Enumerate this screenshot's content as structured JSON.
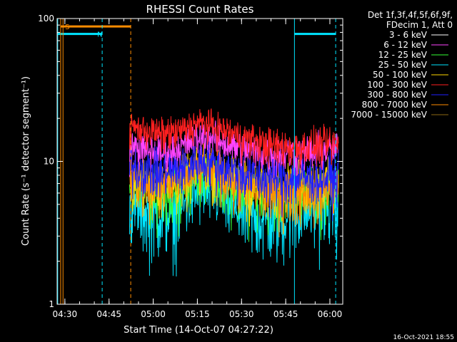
{
  "chart_data": {
    "type": "line",
    "title": "RHESSI Count Rates",
    "xlabel": "Start Time (14-Oct-07 04:27:22)",
    "ylabel": "Count Rate (s⁻¹ detector segment⁻¹)",
    "yscale": "log",
    "ylim": [
      1,
      100
    ],
    "xlim_minutes": [
      0,
      97
    ],
    "y_ticks": [
      "1",
      "10",
      "100"
    ],
    "x_ticks": [
      {
        "label": "04:30",
        "minute": 2.63
      },
      {
        "label": "04:45",
        "minute": 17.63
      },
      {
        "label": "05:00",
        "minute": 32.63
      },
      {
        "label": "05:15",
        "minute": 47.63
      },
      {
        "label": "05:30",
        "minute": 62.63
      },
      {
        "label": "05:45",
        "minute": 77.63
      },
      {
        "label": "06:00",
        "minute": 92.63
      }
    ],
    "legend_header": [
      "Det 1f,3f,4f,5f,6f,9f,",
      "FDecim 1, Att 0"
    ],
    "legend_placement": "right",
    "data_start_minute": 24.6,
    "data_end_minute": 95.6,
    "series": [
      {
        "name": "3 - 6 keV",
        "color": "#ffffff",
        "draw_color": "#000000",
        "x_minutes": [
          24.6,
          30,
          35,
          40,
          44,
          47,
          50,
          55,
          60,
          65,
          70,
          75,
          80,
          85,
          90,
          95.6
        ],
        "values": [
          5.2,
          4.6,
          4.4,
          4.6,
          5.4,
          6.4,
          6.9,
          6.2,
          5.0,
          4.4,
          4.1,
          4.1,
          4.6,
          4.9,
          5.1,
          5.3
        ]
      },
      {
        "name": "6 - 12 keV",
        "color": "#ff44ff",
        "x_minutes": [
          24.6,
          30,
          35,
          40,
          44,
          47,
          50,
          55,
          60,
          65,
          70,
          75,
          80,
          85,
          90,
          95.6
        ],
        "values": [
          12.8,
          12.0,
          11.4,
          11.9,
          13.3,
          14.6,
          15.1,
          14.0,
          12.7,
          11.9,
          11.3,
          11.1,
          11.4,
          11.6,
          11.9,
          12.1
        ]
      },
      {
        "name": "12 - 25 keV",
        "color": "#33ff33",
        "x_minutes": [
          24.6,
          30,
          35,
          40,
          44,
          47,
          50,
          55,
          60,
          65,
          70,
          75,
          80,
          85,
          90,
          95.6
        ],
        "values": [
          6.8,
          6.3,
          6.0,
          6.3,
          7.2,
          8.0,
          8.4,
          7.7,
          6.8,
          6.2,
          5.9,
          5.8,
          6.0,
          6.1,
          6.3,
          6.4
        ]
      },
      {
        "name": "25 - 50 keV",
        "color": "#00e5ff",
        "x_minutes": [
          24.6,
          30,
          35,
          40,
          44,
          47,
          50,
          55,
          60,
          65,
          70,
          75,
          80,
          85,
          90,
          95.6
        ],
        "values": [
          5.0,
          4.4,
          4.2,
          4.4,
          5.1,
          5.9,
          6.3,
          5.7,
          4.7,
          4.2,
          3.9,
          3.9,
          4.3,
          4.6,
          4.8,
          5.0
        ]
      },
      {
        "name": "50 - 100 keV",
        "color": "#ffd700",
        "x_minutes": [
          24.6,
          30,
          35,
          40,
          44,
          47,
          50,
          55,
          60,
          65,
          70,
          75,
          80,
          85,
          90,
          95.6
        ],
        "values": [
          7.5,
          7.0,
          6.7,
          7.0,
          7.8,
          8.6,
          9.0,
          8.3,
          7.4,
          6.8,
          6.5,
          6.4,
          6.6,
          6.8,
          7.0,
          7.1
        ]
      },
      {
        "name": "100 - 300 keV",
        "color": "#ff2020",
        "x_minutes": [
          24.6,
          30,
          35,
          40,
          44,
          47,
          50,
          55,
          60,
          65,
          70,
          75,
          80,
          85,
          90,
          95.6
        ],
        "values": [
          17.6,
          16.5,
          15.6,
          15.9,
          17.0,
          18.3,
          18.6,
          17.0,
          15.5,
          14.3,
          13.4,
          12.8,
          12.7,
          12.8,
          13.1,
          13.3
        ]
      },
      {
        "name": "300 - 800 keV",
        "color": "#2020ff",
        "x_minutes": [
          24.6,
          30,
          35,
          40,
          44,
          47,
          50,
          55,
          60,
          65,
          70,
          75,
          80,
          85,
          90,
          95.6
        ],
        "values": [
          9.4,
          8.8,
          8.4,
          8.6,
          9.3,
          10.0,
          10.2,
          9.4,
          8.6,
          8.0,
          7.7,
          7.5,
          7.6,
          7.7,
          7.8,
          7.9
        ]
      },
      {
        "name": "800 - 7000 keV",
        "color": "#ff8c00",
        "x_minutes": [
          24.6,
          30,
          35,
          40,
          44,
          47,
          50,
          55,
          60,
          65,
          70,
          75,
          80,
          85,
          90,
          95.6
        ],
        "values": [
          7.9,
          7.3,
          7.0,
          7.2,
          8.0,
          8.8,
          9.1,
          8.3,
          7.3,
          6.7,
          6.3,
          6.2,
          6.3,
          6.5,
          6.7,
          6.8
        ]
      },
      {
        "name": "7000 - 15000 keV",
        "color": "#8b6914",
        "x_minutes": [
          24.6,
          95.6
        ],
        "values": [
          6.0,
          5.6
        ]
      }
    ],
    "markers": [
      {
        "label": "S",
        "color": "#ff8c00",
        "style": "dashed",
        "x_minutes": [
          25.0
        ]
      },
      {
        "label": "",
        "color": "#ff8c00",
        "style": "solid",
        "x_minutes": [
          1.2,
          2.0
        ]
      },
      {
        "label": "N",
        "color": "#00e5ff",
        "style": "dashed",
        "x_minutes": [
          15.3,
          94.6
        ]
      },
      {
        "label": "",
        "color": "#00e5ff",
        "style": "solid",
        "x_minutes": [
          0.2,
          80.6
        ]
      }
    ],
    "bars": [
      {
        "color": "#ff8c00",
        "x_minutes": [
          1.2,
          25.0
        ],
        "value": 88
      },
      {
        "color": "#00e5ff",
        "x_minutes": [
          0.2,
          15.3
        ],
        "value": 78
      },
      {
        "color": "#00e5ff",
        "x_minutes": [
          80.6,
          94.6
        ],
        "value": 78
      }
    ]
  },
  "timestamp": "16-Oct-2021 18:55"
}
